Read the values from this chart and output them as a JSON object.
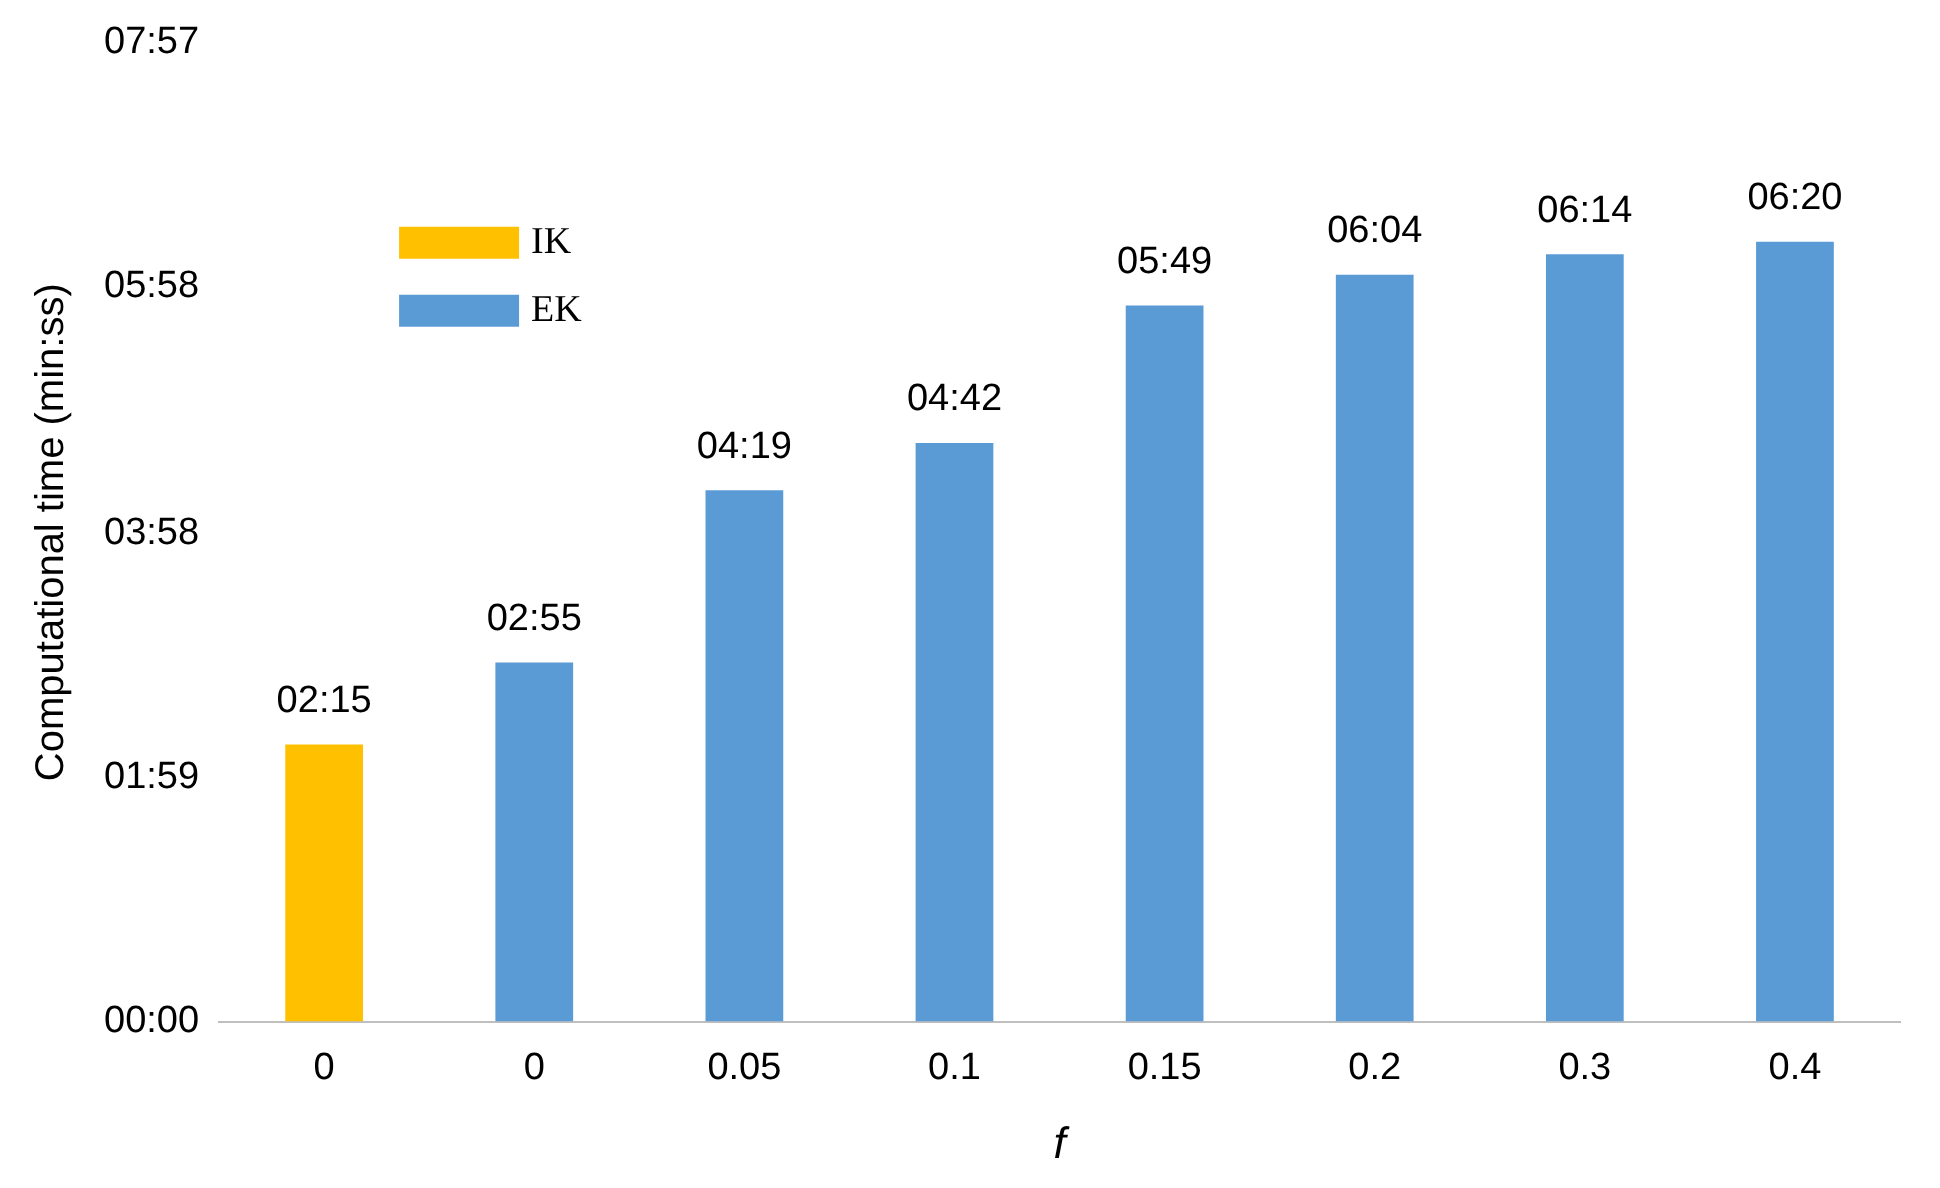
{
  "chart_data": {
    "type": "bar",
    "xlabel": "f",
    "ylabel": "Computational time (min:ss)",
    "categories": [
      "0",
      "0",
      "0.05",
      "0.1",
      "0.15",
      "0.2",
      "0.3",
      "0.4"
    ],
    "series": [
      {
        "name": "IK",
        "color": "#ffc000",
        "values": [
          135,
          null,
          null,
          null,
          null,
          null,
          null,
          null
        ],
        "value_labels": [
          "02:15",
          null,
          null,
          null,
          null,
          null,
          null,
          null
        ]
      },
      {
        "name": "EK",
        "color": "#5b9bd5",
        "values": [
          null,
          175,
          259,
          282,
          349,
          364,
          374,
          380
        ],
        "value_labels": [
          null,
          "02:55",
          "04:19",
          "04:42",
          "05:49",
          "06:04",
          "06:14",
          "06:20"
        ]
      }
    ],
    "ylim": [
      0,
      477
    ],
    "yticks": [
      {
        "value": 0,
        "label": "00:00"
      },
      {
        "value": 119,
        "label": "01:59"
      },
      {
        "value": 238,
        "label": "03:58"
      },
      {
        "value": 358,
        "label": "05:58"
      },
      {
        "value": 477,
        "label": "07:57"
      }
    ],
    "grid": false,
    "legend": "top left"
  }
}
